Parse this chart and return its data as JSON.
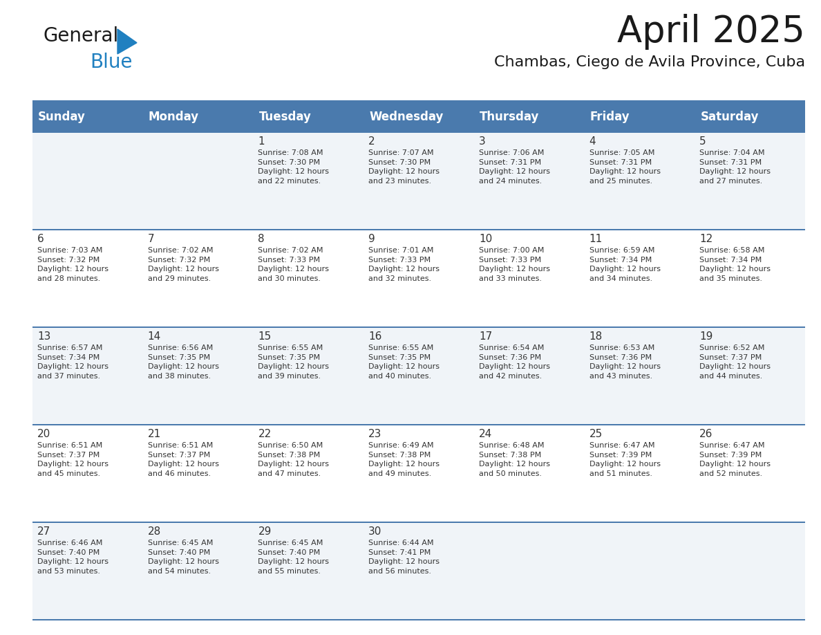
{
  "title": "April 2025",
  "subtitle": "Chambas, Ciego de Avila Province, Cuba",
  "header_bg": "#4a7aad",
  "header_text": "#ffffff",
  "row_bg_odd": "#f0f4f8",
  "row_bg_even": "#ffffff",
  "border_color": "#4a7aad",
  "cell_text_color": "#333333",
  "day_names": [
    "Sunday",
    "Monday",
    "Tuesday",
    "Wednesday",
    "Thursday",
    "Friday",
    "Saturday"
  ],
  "weeks": [
    [
      {
        "day": "",
        "info": ""
      },
      {
        "day": "",
        "info": ""
      },
      {
        "day": "1",
        "info": "Sunrise: 7:08 AM\nSunset: 7:30 PM\nDaylight: 12 hours\nand 22 minutes."
      },
      {
        "day": "2",
        "info": "Sunrise: 7:07 AM\nSunset: 7:30 PM\nDaylight: 12 hours\nand 23 minutes."
      },
      {
        "day": "3",
        "info": "Sunrise: 7:06 AM\nSunset: 7:31 PM\nDaylight: 12 hours\nand 24 minutes."
      },
      {
        "day": "4",
        "info": "Sunrise: 7:05 AM\nSunset: 7:31 PM\nDaylight: 12 hours\nand 25 minutes."
      },
      {
        "day": "5",
        "info": "Sunrise: 7:04 AM\nSunset: 7:31 PM\nDaylight: 12 hours\nand 27 minutes."
      }
    ],
    [
      {
        "day": "6",
        "info": "Sunrise: 7:03 AM\nSunset: 7:32 PM\nDaylight: 12 hours\nand 28 minutes."
      },
      {
        "day": "7",
        "info": "Sunrise: 7:02 AM\nSunset: 7:32 PM\nDaylight: 12 hours\nand 29 minutes."
      },
      {
        "day": "8",
        "info": "Sunrise: 7:02 AM\nSunset: 7:33 PM\nDaylight: 12 hours\nand 30 minutes."
      },
      {
        "day": "9",
        "info": "Sunrise: 7:01 AM\nSunset: 7:33 PM\nDaylight: 12 hours\nand 32 minutes."
      },
      {
        "day": "10",
        "info": "Sunrise: 7:00 AM\nSunset: 7:33 PM\nDaylight: 12 hours\nand 33 minutes."
      },
      {
        "day": "11",
        "info": "Sunrise: 6:59 AM\nSunset: 7:34 PM\nDaylight: 12 hours\nand 34 minutes."
      },
      {
        "day": "12",
        "info": "Sunrise: 6:58 AM\nSunset: 7:34 PM\nDaylight: 12 hours\nand 35 minutes."
      }
    ],
    [
      {
        "day": "13",
        "info": "Sunrise: 6:57 AM\nSunset: 7:34 PM\nDaylight: 12 hours\nand 37 minutes."
      },
      {
        "day": "14",
        "info": "Sunrise: 6:56 AM\nSunset: 7:35 PM\nDaylight: 12 hours\nand 38 minutes."
      },
      {
        "day": "15",
        "info": "Sunrise: 6:55 AM\nSunset: 7:35 PM\nDaylight: 12 hours\nand 39 minutes."
      },
      {
        "day": "16",
        "info": "Sunrise: 6:55 AM\nSunset: 7:35 PM\nDaylight: 12 hours\nand 40 minutes."
      },
      {
        "day": "17",
        "info": "Sunrise: 6:54 AM\nSunset: 7:36 PM\nDaylight: 12 hours\nand 42 minutes."
      },
      {
        "day": "18",
        "info": "Sunrise: 6:53 AM\nSunset: 7:36 PM\nDaylight: 12 hours\nand 43 minutes."
      },
      {
        "day": "19",
        "info": "Sunrise: 6:52 AM\nSunset: 7:37 PM\nDaylight: 12 hours\nand 44 minutes."
      }
    ],
    [
      {
        "day": "20",
        "info": "Sunrise: 6:51 AM\nSunset: 7:37 PM\nDaylight: 12 hours\nand 45 minutes."
      },
      {
        "day": "21",
        "info": "Sunrise: 6:51 AM\nSunset: 7:37 PM\nDaylight: 12 hours\nand 46 minutes."
      },
      {
        "day": "22",
        "info": "Sunrise: 6:50 AM\nSunset: 7:38 PM\nDaylight: 12 hours\nand 47 minutes."
      },
      {
        "day": "23",
        "info": "Sunrise: 6:49 AM\nSunset: 7:38 PM\nDaylight: 12 hours\nand 49 minutes."
      },
      {
        "day": "24",
        "info": "Sunrise: 6:48 AM\nSunset: 7:38 PM\nDaylight: 12 hours\nand 50 minutes."
      },
      {
        "day": "25",
        "info": "Sunrise: 6:47 AM\nSunset: 7:39 PM\nDaylight: 12 hours\nand 51 minutes."
      },
      {
        "day": "26",
        "info": "Sunrise: 6:47 AM\nSunset: 7:39 PM\nDaylight: 12 hours\nand 52 minutes."
      }
    ],
    [
      {
        "day": "27",
        "info": "Sunrise: 6:46 AM\nSunset: 7:40 PM\nDaylight: 12 hours\nand 53 minutes."
      },
      {
        "day": "28",
        "info": "Sunrise: 6:45 AM\nSunset: 7:40 PM\nDaylight: 12 hours\nand 54 minutes."
      },
      {
        "day": "29",
        "info": "Sunrise: 6:45 AM\nSunset: 7:40 PM\nDaylight: 12 hours\nand 55 minutes."
      },
      {
        "day": "30",
        "info": "Sunrise: 6:44 AM\nSunset: 7:41 PM\nDaylight: 12 hours\nand 56 minutes."
      },
      {
        "day": "",
        "info": ""
      },
      {
        "day": "",
        "info": ""
      },
      {
        "day": "",
        "info": ""
      }
    ]
  ],
  "logo_color_general": "#1a1a1a",
  "logo_color_blue": "#2080c0",
  "logo_triangle_color": "#2080c0",
  "title_fontsize": 38,
  "subtitle_fontsize": 16,
  "dayname_fontsize": 12,
  "daynum_fontsize": 11,
  "info_fontsize": 8
}
